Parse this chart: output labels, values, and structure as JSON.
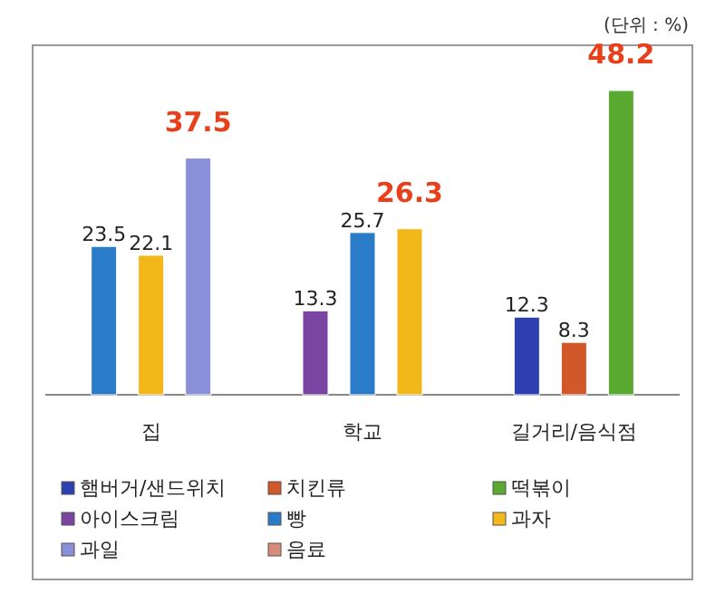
{
  "chart_data": {
    "type": "bar",
    "categories": [
      "집",
      "학교",
      "길거리/음식점"
    ],
    "series": [
      {
        "name": "햄버거/샌드위치",
        "color": "#2e3fb0",
        "values": [
          null,
          null,
          12.3
        ]
      },
      {
        "name": "치킨류",
        "color": "#d0582a",
        "values": [
          null,
          null,
          8.3
        ]
      },
      {
        "name": "떡볶이",
        "color": "#5aaa32",
        "values": [
          null,
          null,
          48.2
        ]
      },
      {
        "name": "아이스크림",
        "color": "#7a45a0",
        "values": [
          null,
          13.3,
          null
        ]
      },
      {
        "name": "빵",
        "color": "#2a7cc8",
        "values": [
          23.5,
          25.7,
          null
        ]
      },
      {
        "name": "과자",
        "color": "#f2b81a",
        "values": [
          22.1,
          26.3,
          null
        ]
      },
      {
        "name": "과일",
        "color": "#8a90d8",
        "values": [
          37.5,
          null,
          null
        ]
      },
      {
        "name": "음료",
        "color": "#d88a78",
        "values": [
          null,
          null,
          null
        ]
      }
    ],
    "data_labels": true,
    "legend": "bottom",
    "annotations": [
      "(단위 : %)"
    ]
  }
}
